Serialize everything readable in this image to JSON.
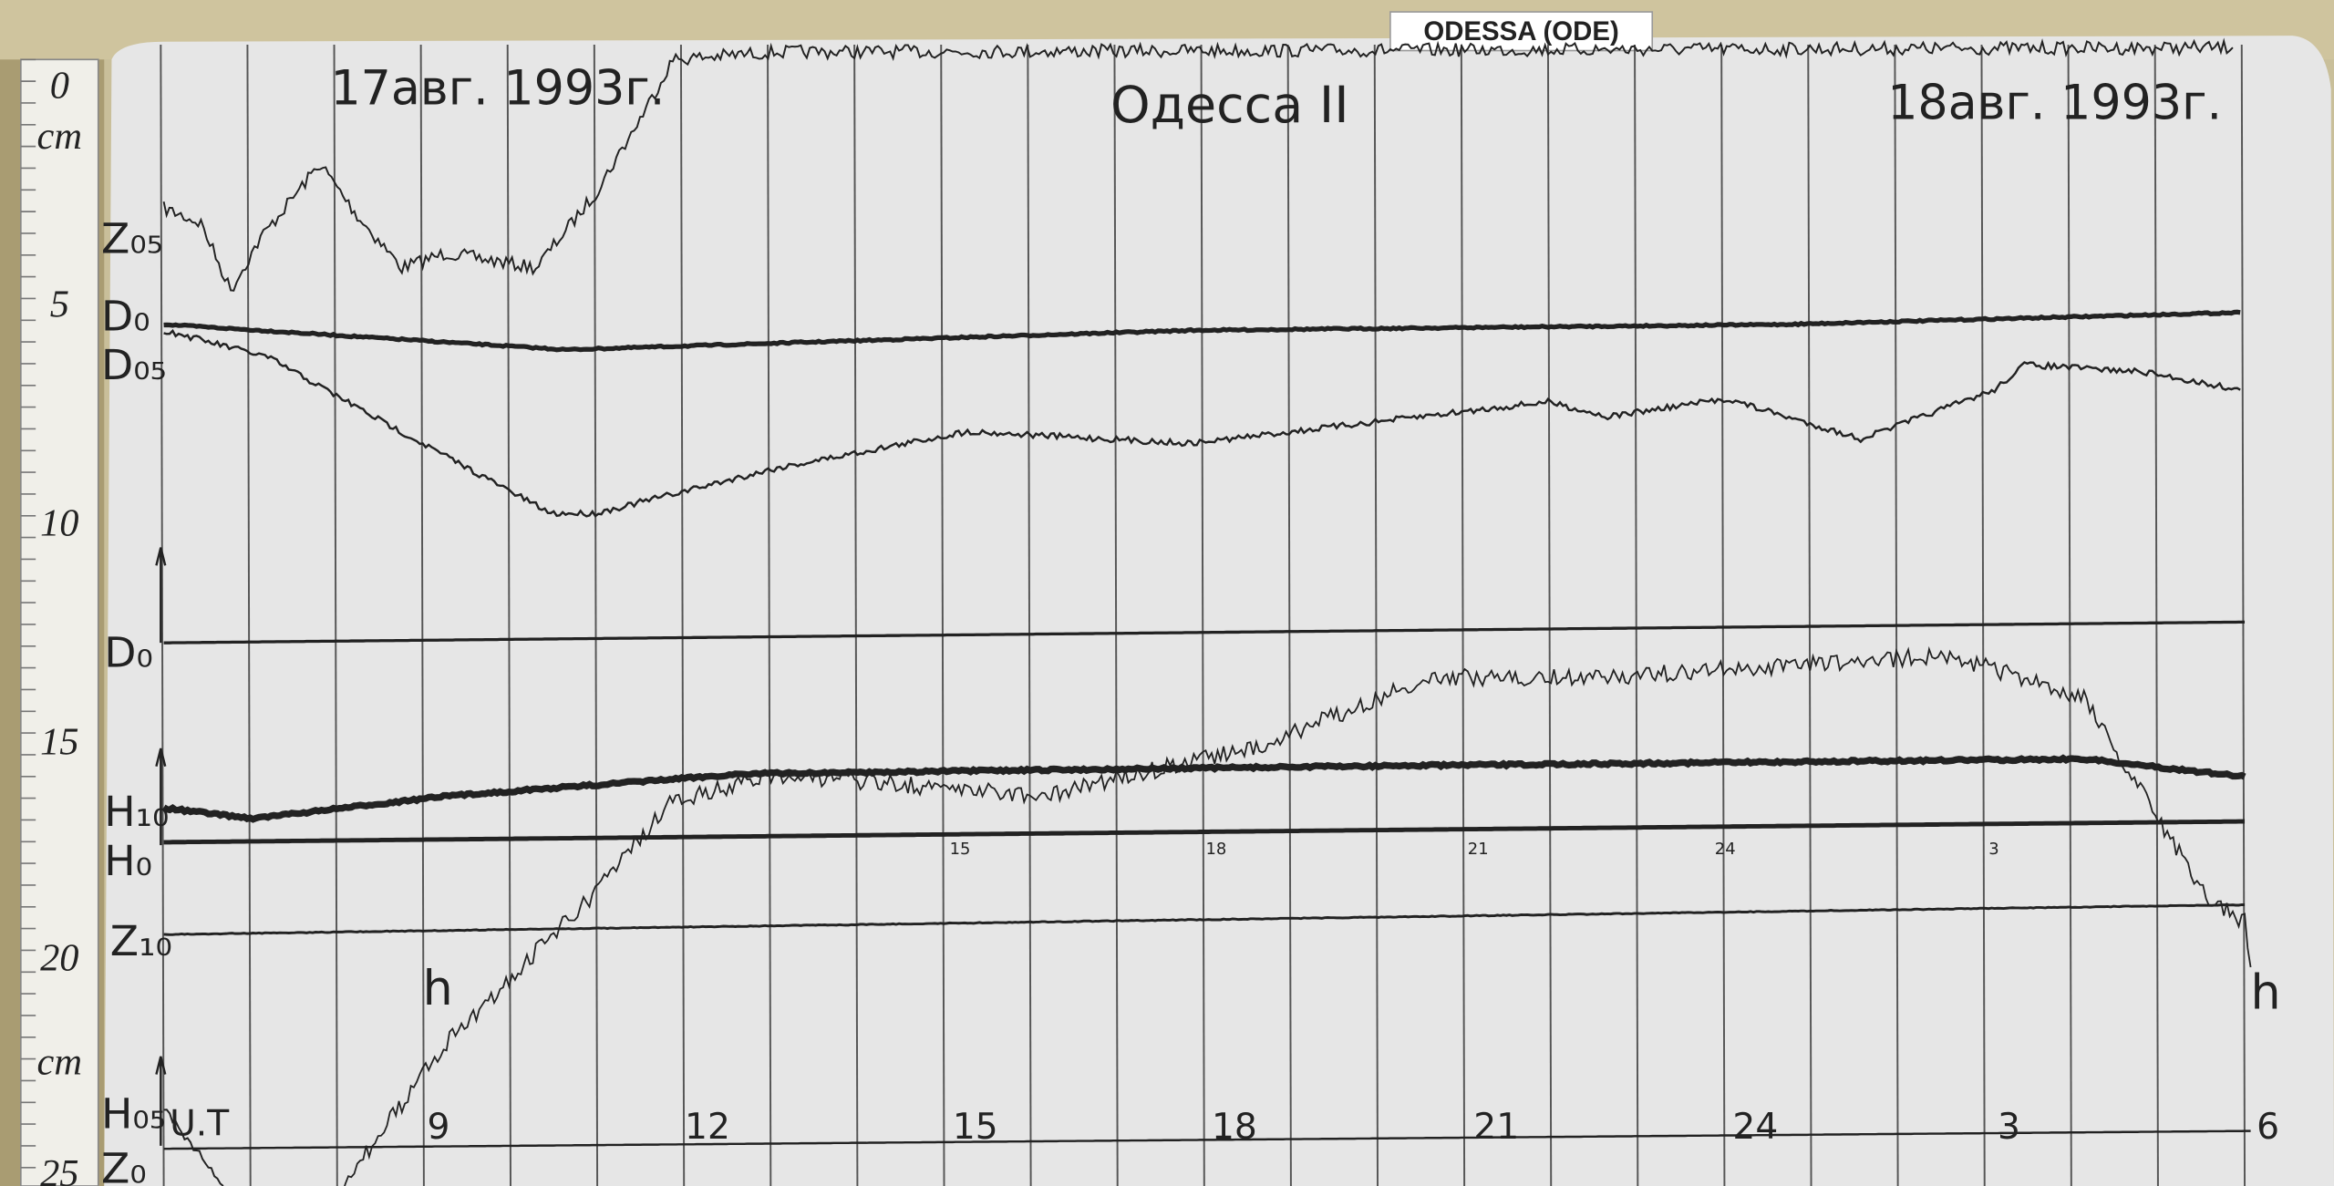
{
  "header": {
    "label": "ODESSA (ODE)",
    "date_start": "17авг. 1993г.",
    "station": "Одесса II",
    "date_end": "18авг. 1993г."
  },
  "ruler": {
    "marks": [
      "0",
      "cm",
      "5",
      "10",
      "15",
      "20",
      "cm",
      "25"
    ]
  },
  "traces": {
    "labels": [
      "Z₀₅",
      "D₀",
      "D₀₅",
      "D₀",
      "H₁₀",
      "H₀",
      "Z₁₀",
      "H₀₅",
      "Z₀"
    ]
  },
  "time_axis": {
    "unit_label": "U.T",
    "hour_marks": [
      "9",
      "12",
      "15",
      "18",
      "21",
      "24",
      "3",
      "6"
    ],
    "small_marks": [
      "15",
      "18",
      "21",
      "24",
      "3"
    ],
    "h_labels": [
      "h",
      "h"
    ]
  }
}
